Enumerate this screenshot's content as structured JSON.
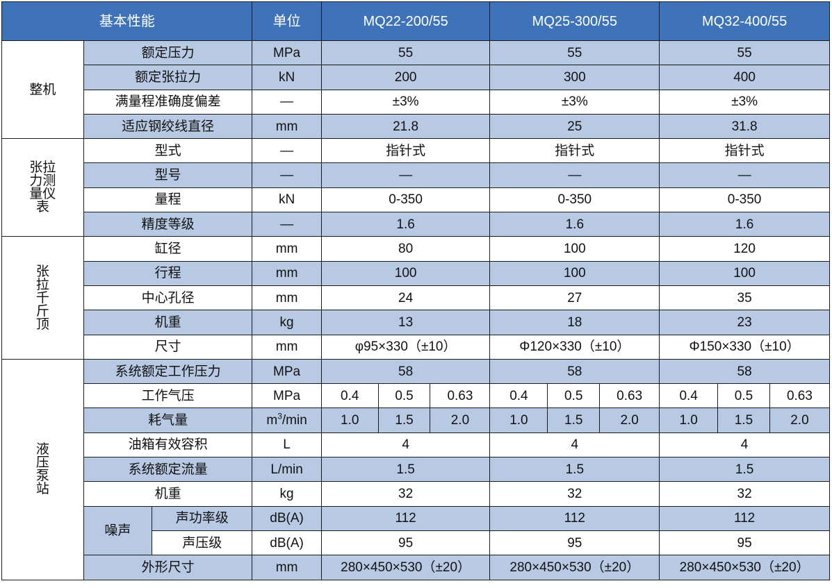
{
  "header": {
    "performance": "基本性能",
    "unit": "单位",
    "models": [
      "MQ22-200/55",
      "MQ25-300/55",
      "MQ32-400/55"
    ]
  },
  "groups": {
    "machine": "整机",
    "gauge": "张拉力测量仪表",
    "jack": "张拉千斤顶",
    "pump": "液压泵站"
  },
  "rows": {
    "rated_pressure": {
      "label": "额定压力",
      "unit": "MPa",
      "values": [
        "55",
        "55",
        "55"
      ]
    },
    "rated_force": {
      "label": "额定张拉力",
      "unit": "kN",
      "values": [
        "200",
        "300",
        "400"
      ]
    },
    "accuracy": {
      "label": "满量程准确度偏差",
      "unit": "—",
      "values": [
        "±3%",
        "±3%",
        "±3%"
      ]
    },
    "strand_dia": {
      "label": "适应钢绞线直径",
      "unit": "mm",
      "values": [
        "21.8",
        "25",
        "31.8"
      ]
    },
    "gauge_type": {
      "label": "型式",
      "unit": "—",
      "values": [
        "指针式",
        "指针式",
        "指针式"
      ]
    },
    "gauge_model": {
      "label": "型号",
      "unit": "—",
      "values": [
        "—",
        "—",
        "—"
      ]
    },
    "gauge_range": {
      "label": "量程",
      "unit": "kN",
      "values": [
        "0-350",
        "0-350",
        "0-350"
      ]
    },
    "gauge_class": {
      "label": "精度等级",
      "unit": "—",
      "values": [
        "1.6",
        "1.6",
        "1.6"
      ]
    },
    "bore": {
      "label": "缸径",
      "unit": "mm",
      "values": [
        "80",
        "100",
        "120"
      ]
    },
    "stroke": {
      "label": "行程",
      "unit": "mm",
      "values": [
        "100",
        "100",
        "100"
      ]
    },
    "center_hole": {
      "label": "中心孔径",
      "unit": "mm",
      "values": [
        "24",
        "27",
        "35"
      ]
    },
    "jack_weight": {
      "label": "机重",
      "unit": "kg",
      "values": [
        "13",
        "18",
        "23"
      ]
    },
    "jack_size": {
      "label": "尺寸",
      "unit": "mm",
      "values": [
        "φ95×330（±10）",
        "Φ120×330（±10）",
        "Φ150×330（±10）"
      ]
    },
    "sys_pressure": {
      "label": "系统额定工作压力",
      "unit": "MPa",
      "values": [
        "58",
        "58",
        "58"
      ]
    },
    "air_pressure": {
      "label": "工作气压",
      "unit": "MPa",
      "values": [
        "0.4",
        "0.5",
        "0.63",
        "0.4",
        "0.5",
        "0.63",
        "0.4",
        "0.5",
        "0.63"
      ]
    },
    "air_consumption": {
      "label": "耗气量",
      "unit": "m",
      "unit_sup": "3",
      "unit_tail": "/min",
      "values": [
        "1.0",
        "1.5",
        "2.0",
        "1.0",
        "1.5",
        "2.0",
        "1.0",
        "1.5",
        "2.0"
      ]
    },
    "tank_volume": {
      "label": "油箱有效容积",
      "unit": "L",
      "values": [
        "4",
        "4",
        "4"
      ]
    },
    "sys_flow": {
      "label": "系统额定流量",
      "unit": "L/min",
      "values": [
        "1.5",
        "1.5",
        "1.5"
      ]
    },
    "pump_weight": {
      "label": "机重",
      "unit": "kg",
      "values": [
        "32",
        "32",
        "32"
      ]
    },
    "noise_label": "噪声",
    "sound_power": {
      "label": "声功率级",
      "unit": "dB(A)",
      "values": [
        "112",
        "112",
        "112"
      ]
    },
    "sound_pressure": {
      "label": "声压级",
      "unit": "dB(A)",
      "values": [
        "95",
        "95",
        "95"
      ]
    },
    "outline": {
      "label": "外形尺寸",
      "unit": "mm",
      "values": [
        "280×450×530（±20）",
        "280×450×530（±20）",
        "280×450×530（±20）"
      ]
    }
  },
  "colors": {
    "header_bg": "#3e73b9",
    "stripe_bg": "#b8c9e4",
    "border": "#1a1a1a"
  }
}
